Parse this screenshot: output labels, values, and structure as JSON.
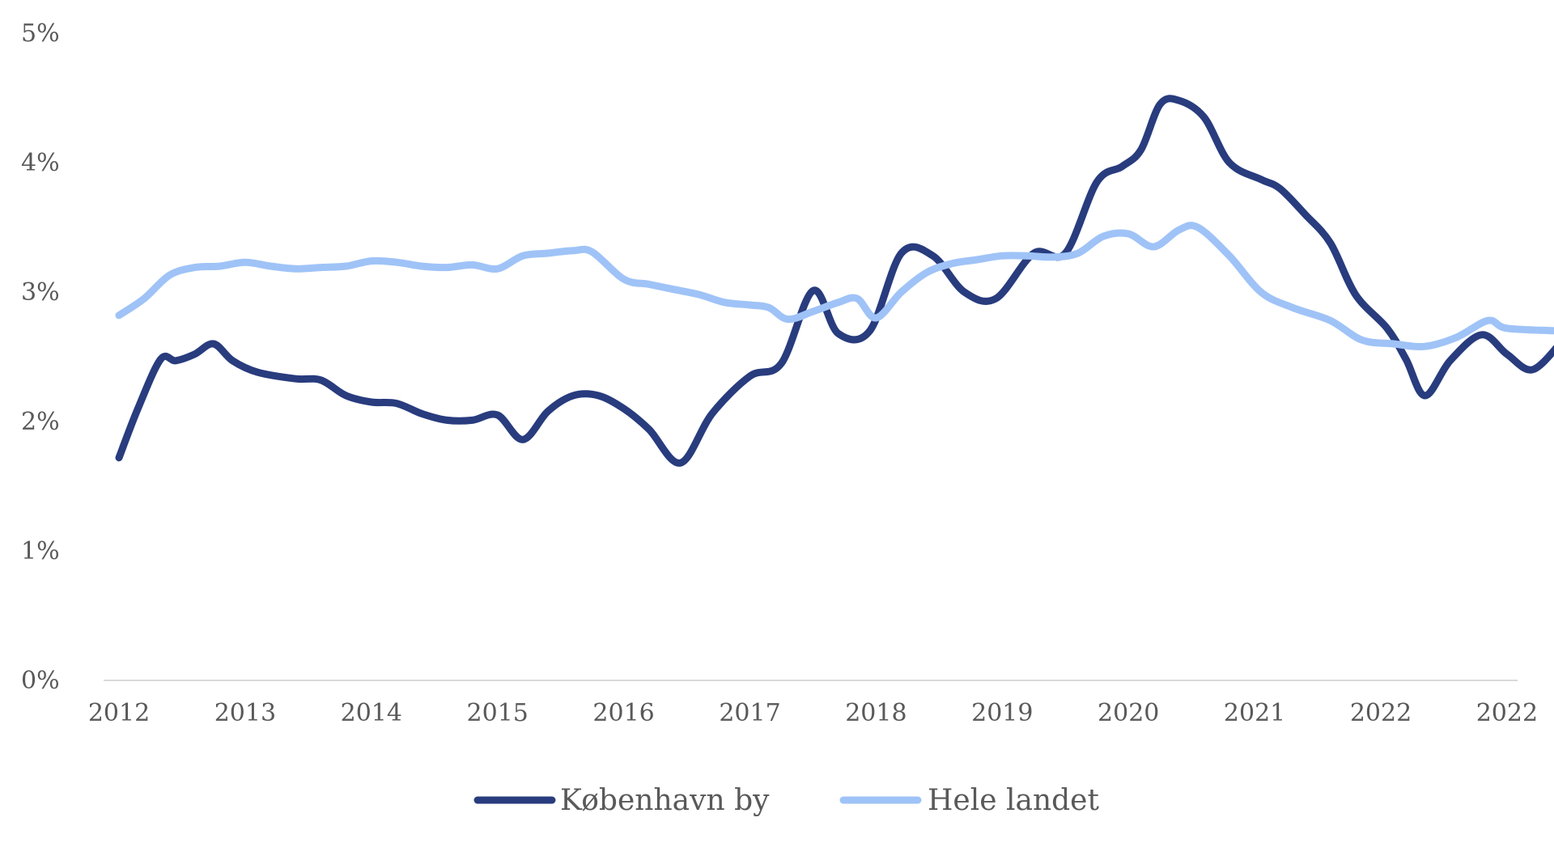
{
  "chart_data": {
    "type": "line",
    "title": "",
    "xlabel": "",
    "ylabel": "",
    "x_tick_labels": [
      "2012",
      "2013",
      "2014",
      "2015",
      "2016",
      "2017",
      "2018",
      "2019",
      "2020",
      "2021",
      "2022",
      "2022"
    ],
    "y_tick_labels": [
      "0%",
      "1%",
      "2%",
      "3%",
      "4%",
      "5%"
    ],
    "ylim": [
      0,
      5
    ],
    "grid": false,
    "legend_position": "bottom",
    "colors": {
      "københavn": "#283c7e",
      "hele_landet": "#9fc3f7",
      "axis": "#d9d9d9",
      "text": "#595959"
    },
    "series": [
      {
        "name": "København by",
        "color": "#283c7e",
        "points": [
          [
            0.0,
            1.72
          ],
          [
            0.15,
            2.1
          ],
          [
            0.33,
            2.48
          ],
          [
            0.45,
            2.47
          ],
          [
            0.6,
            2.52
          ],
          [
            0.75,
            2.6
          ],
          [
            0.9,
            2.47
          ],
          [
            1.1,
            2.38
          ],
          [
            1.4,
            2.33
          ],
          [
            1.6,
            2.32
          ],
          [
            1.8,
            2.2
          ],
          [
            2.0,
            2.15
          ],
          [
            2.2,
            2.14
          ],
          [
            2.4,
            2.06
          ],
          [
            2.6,
            2.01
          ],
          [
            2.8,
            2.01
          ],
          [
            3.0,
            2.05
          ],
          [
            3.2,
            1.86
          ],
          [
            3.4,
            2.08
          ],
          [
            3.6,
            2.2
          ],
          [
            3.8,
            2.2
          ],
          [
            4.0,
            2.1
          ],
          [
            4.2,
            1.94
          ],
          [
            4.45,
            1.68
          ],
          [
            4.7,
            2.06
          ],
          [
            5.0,
            2.35
          ],
          [
            5.25,
            2.45
          ],
          [
            5.5,
            3.01
          ],
          [
            5.7,
            2.68
          ],
          [
            5.95,
            2.7
          ],
          [
            6.2,
            3.3
          ],
          [
            6.45,
            3.28
          ],
          [
            6.7,
            3.0
          ],
          [
            6.95,
            2.95
          ],
          [
            7.25,
            3.3
          ],
          [
            7.5,
            3.3
          ],
          [
            7.75,
            3.85
          ],
          [
            7.95,
            3.97
          ],
          [
            8.1,
            4.1
          ],
          [
            8.25,
            4.45
          ],
          [
            8.4,
            4.48
          ],
          [
            8.6,
            4.35
          ],
          [
            8.8,
            4.0
          ],
          [
            9.05,
            3.87
          ],
          [
            9.2,
            3.8
          ],
          [
            9.4,
            3.6
          ],
          [
            9.6,
            3.38
          ],
          [
            9.8,
            2.98
          ],
          [
            10.05,
            2.72
          ],
          [
            10.2,
            2.48
          ],
          [
            10.35,
            2.2
          ],
          [
            10.55,
            2.47
          ],
          [
            10.8,
            2.67
          ],
          [
            11.0,
            2.52
          ],
          [
            11.2,
            2.4
          ],
          [
            11.42,
            2.6
          ]
        ]
      },
      {
        "name": "Hele landet",
        "color": "#9fc3f7",
        "points": [
          [
            0.0,
            2.82
          ],
          [
            0.2,
            2.95
          ],
          [
            0.4,
            3.13
          ],
          [
            0.6,
            3.19
          ],
          [
            0.8,
            3.2
          ],
          [
            1.0,
            3.23
          ],
          [
            1.2,
            3.2
          ],
          [
            1.4,
            3.18
          ],
          [
            1.6,
            3.19
          ],
          [
            1.8,
            3.2
          ],
          [
            2.0,
            3.24
          ],
          [
            2.2,
            3.23
          ],
          [
            2.4,
            3.2
          ],
          [
            2.6,
            3.19
          ],
          [
            2.8,
            3.21
          ],
          [
            3.0,
            3.18
          ],
          [
            3.2,
            3.28
          ],
          [
            3.4,
            3.3
          ],
          [
            3.6,
            3.32
          ],
          [
            3.75,
            3.31
          ],
          [
            4.0,
            3.1
          ],
          [
            4.2,
            3.06
          ],
          [
            4.4,
            3.02
          ],
          [
            4.6,
            2.98
          ],
          [
            4.8,
            2.92
          ],
          [
            5.0,
            2.9
          ],
          [
            5.15,
            2.88
          ],
          [
            5.3,
            2.79
          ],
          [
            5.5,
            2.85
          ],
          [
            5.7,
            2.92
          ],
          [
            5.85,
            2.95
          ],
          [
            6.0,
            2.8
          ],
          [
            6.2,
            3.0
          ],
          [
            6.4,
            3.15
          ],
          [
            6.6,
            3.22
          ],
          [
            6.8,
            3.25
          ],
          [
            7.0,
            3.28
          ],
          [
            7.2,
            3.28
          ],
          [
            7.4,
            3.27
          ],
          [
            7.6,
            3.3
          ],
          [
            7.8,
            3.43
          ],
          [
            8.0,
            3.45
          ],
          [
            8.2,
            3.35
          ],
          [
            8.4,
            3.48
          ],
          [
            8.55,
            3.5
          ],
          [
            8.8,
            3.28
          ],
          [
            9.05,
            3.0
          ],
          [
            9.3,
            2.88
          ],
          [
            9.6,
            2.78
          ],
          [
            9.85,
            2.63
          ],
          [
            10.1,
            2.6
          ],
          [
            10.35,
            2.58
          ],
          [
            10.6,
            2.65
          ],
          [
            10.85,
            2.78
          ],
          [
            11.0,
            2.72
          ],
          [
            11.42,
            2.7
          ]
        ]
      }
    ]
  }
}
